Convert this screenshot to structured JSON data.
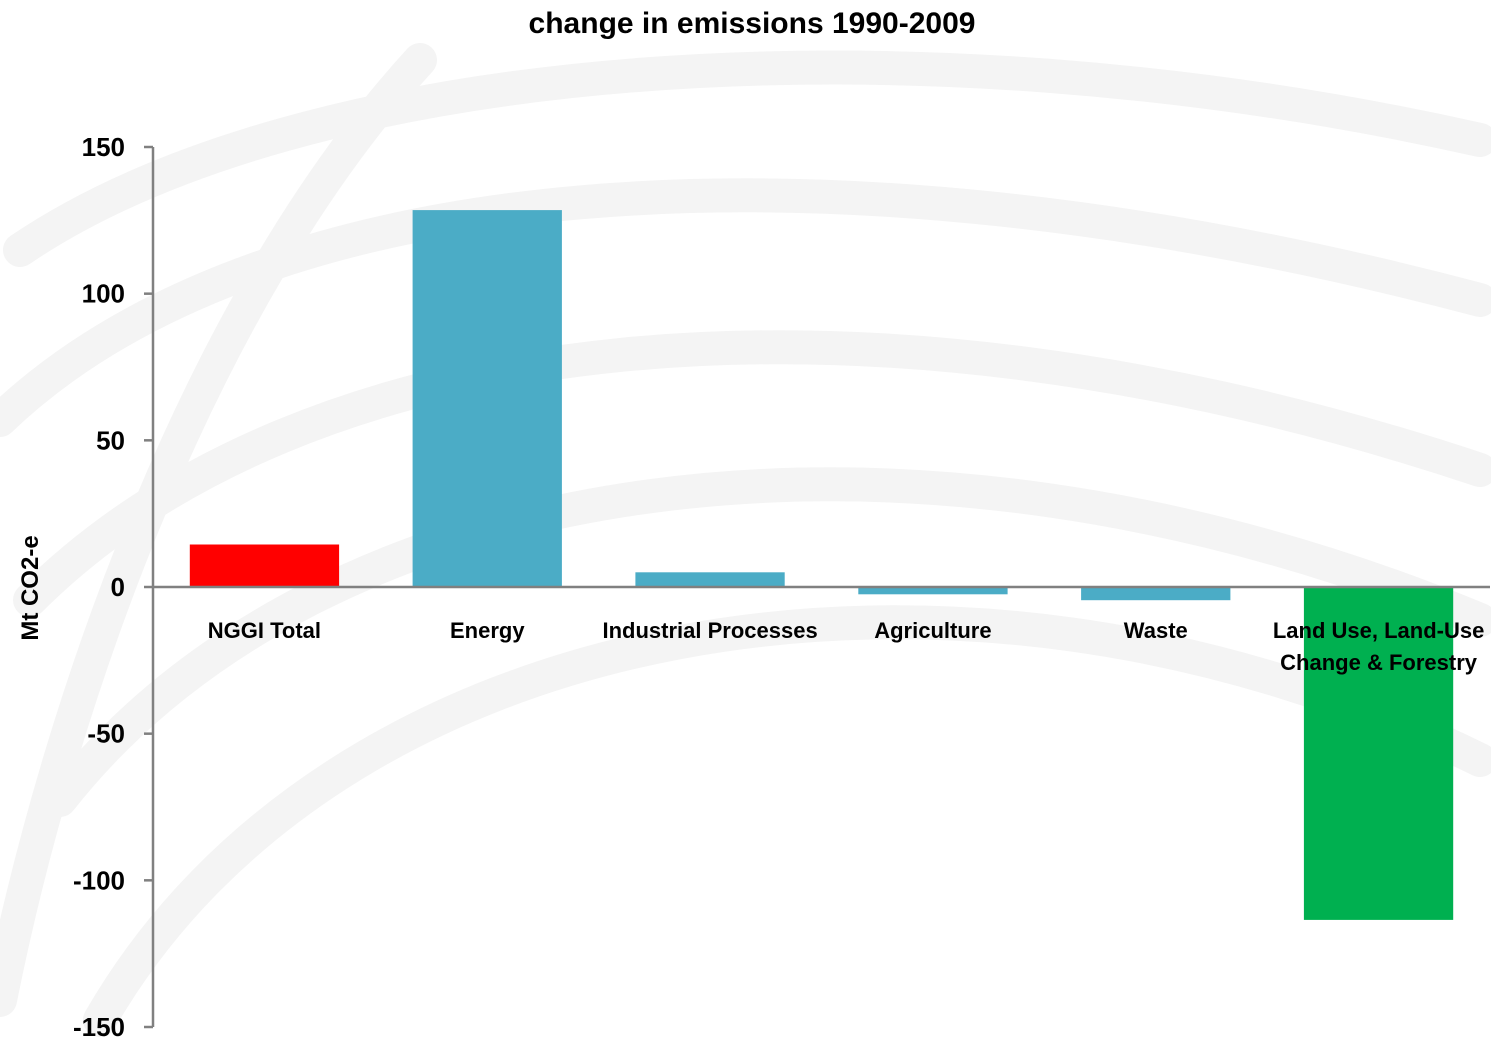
{
  "chart_data": {
    "type": "bar",
    "title": "change in emissions 1990-2009",
    "xlabel": "",
    "ylabel": "Mt CO2-e",
    "ylim": [
      -150,
      150
    ],
    "yticks": [
      150,
      100,
      50,
      0,
      -50,
      -100,
      -150
    ],
    "categories": [
      [
        "NGGI Total"
      ],
      [
        "Energy"
      ],
      [
        "Industrial Processes"
      ],
      [
        "Agriculture"
      ],
      [
        "Waste"
      ],
      [
        "Land Use, Land-Use",
        "Change & Forestry"
      ]
    ],
    "values": [
      14.5,
      128.5,
      5,
      -2.5,
      -4.5,
      -113.5
    ],
    "colors": [
      "#ff0000",
      "#4bacc6",
      "#4bacc6",
      "#4bacc6",
      "#4bacc6",
      "#00b050"
    ],
    "grid": false,
    "legend": "none"
  }
}
